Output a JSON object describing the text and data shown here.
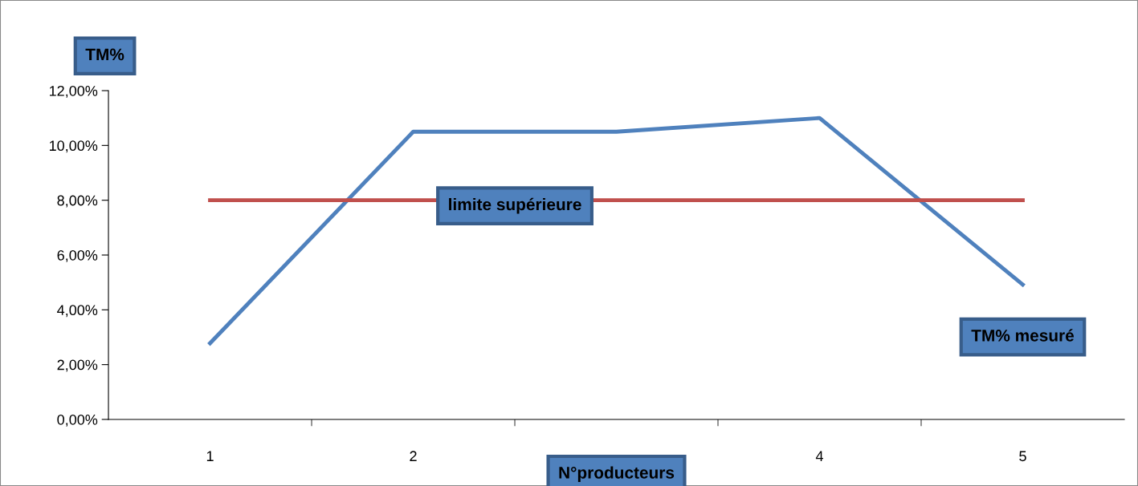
{
  "chart_data": {
    "type": "line",
    "xlabel": "N°producteurs",
    "ylabel": "TM%",
    "categories": [
      "1",
      "2",
      null,
      "4",
      "5"
    ],
    "series": [
      {
        "name": "TM% mesuré",
        "color": "#4f81bd",
        "values": [
          2.78,
          10.5,
          10.5,
          11.0,
          4.92
        ]
      },
      {
        "name": "limite supérieure",
        "color": "#c0504d",
        "values": [
          8,
          8,
          8,
          8,
          8
        ]
      }
    ],
    "ylim": [
      0,
      12
    ],
    "yticks": [
      {
        "value": 0,
        "label": "0,00%"
      },
      {
        "value": 2,
        "label": "2,00%"
      },
      {
        "value": 4,
        "label": "4,00%"
      },
      {
        "value": 6,
        "label": "6,00%"
      },
      {
        "value": 8,
        "label": "8,00%"
      },
      {
        "value": 10,
        "label": "10,00%"
      },
      {
        "value": 12,
        "label": "12,00%"
      }
    ],
    "grid": false,
    "legend": false,
    "marker": "none",
    "line_style": "solid"
  }
}
